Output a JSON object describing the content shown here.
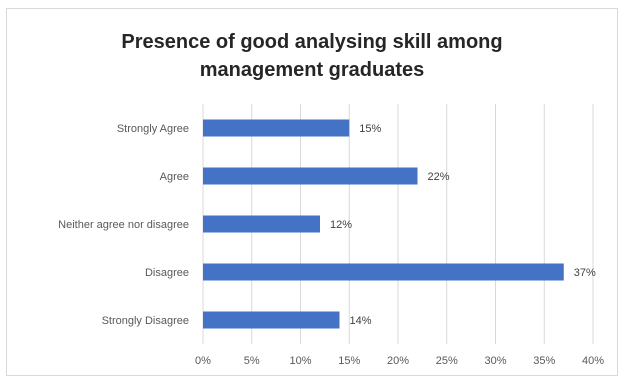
{
  "chart_data": {
    "type": "bar",
    "orientation": "horizontal",
    "title_lines": [
      "Presence of good analysing skill among",
      "management graduates"
    ],
    "title": "Presence of good analysing skill among management graduates",
    "categories": [
      "Strongly Agree",
      "Agree",
      "Neither agree nor disagree",
      "Disagree",
      "Strongly Disagree"
    ],
    "values": [
      15,
      22,
      12,
      37,
      14
    ],
    "data_labels": [
      "15%",
      "22%",
      "12%",
      "37%",
      "14%"
    ],
    "xlim": [
      0,
      40
    ],
    "x_ticks": [
      "0%",
      "5%",
      "10%",
      "15%",
      "20%",
      "25%",
      "30%",
      "35%",
      "40%"
    ],
    "xlabel": "",
    "ylabel": "",
    "grid": true,
    "legend": false,
    "bar_color": "#4472c4"
  }
}
